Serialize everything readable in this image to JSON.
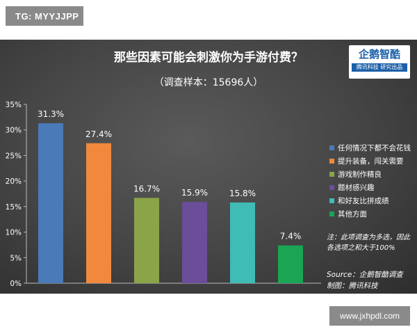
{
  "watermark_top": "TG: MYYJJPP",
  "watermark_bottom": "www.jxhpdl.com",
  "logo": {
    "name": "企鹅智酷",
    "tagline": "腾讯科技  研究出品"
  },
  "note": "注：此项调查为多选，因此各选项之和大于100%",
  "source": {
    "line1": "Source：企鹅智酷调查",
    "line2": "制图：腾讯科技"
  },
  "chart_data": {
    "type": "bar",
    "title": "那些因素可能会刺激你为手游付费？",
    "subtitle": "（调查样本：15696人）",
    "categories": [
      "任何情况下都不会花钱",
      "提升装备，闯关需要",
      "游戏制作精良",
      "题材感兴趣",
      "和好友比拼成绩",
      "其他方面"
    ],
    "values": [
      31.3,
      27.4,
      16.7,
      15.9,
      15.8,
      7.4
    ],
    "data_labels": [
      "31.3%",
      "27.4%",
      "16.7%",
      "15.9%",
      "15.8%",
      "7.4%"
    ],
    "colors": [
      "#4a7ab8",
      "#f0893d",
      "#8ba448",
      "#6b4d9a",
      "#3fbcb5",
      "#19a553"
    ],
    "yticks": [
      "0%",
      "5%",
      "10%",
      "15%",
      "20%",
      "25%",
      "30%",
      "35%"
    ],
    "ylim": [
      0,
      35
    ],
    "grid": false,
    "legend_position": "right"
  }
}
